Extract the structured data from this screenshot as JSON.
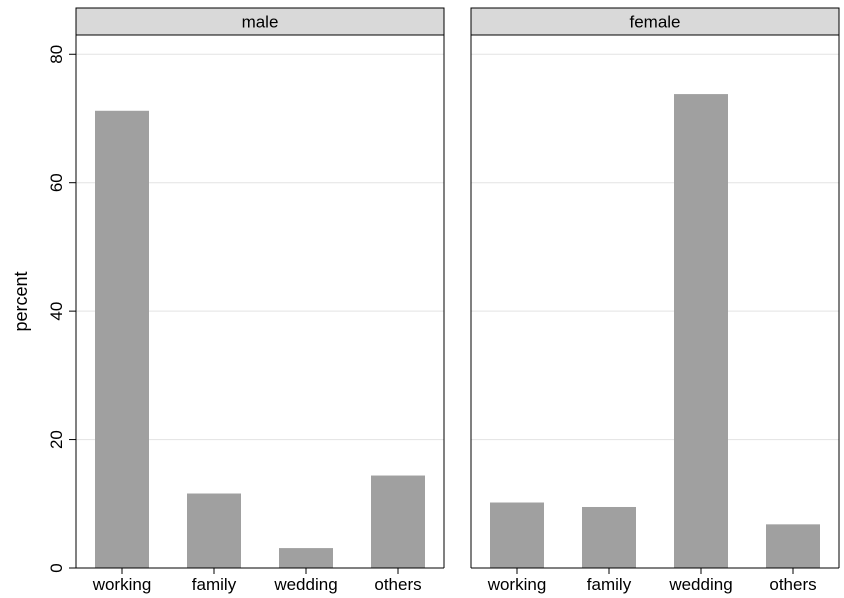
{
  "chart_data": {
    "type": "bar",
    "layout": "faceted-by-panel",
    "ylabel": "percent",
    "ylim": [
      0,
      83
    ],
    "yticks": [
      0,
      20,
      40,
      60,
      80
    ],
    "grid": true,
    "categories": [
      "working",
      "family",
      "wedding",
      "others"
    ],
    "panels": [
      {
        "name": "male",
        "values": [
          71.2,
          11.6,
          3.1,
          14.4
        ]
      },
      {
        "name": "female",
        "values": [
          10.2,
          9.5,
          73.8,
          6.8
        ]
      }
    ],
    "colors": {
      "bar": "#a0a0a0",
      "strip": "#d9d9d9",
      "grid": "#e3e3e3"
    }
  }
}
